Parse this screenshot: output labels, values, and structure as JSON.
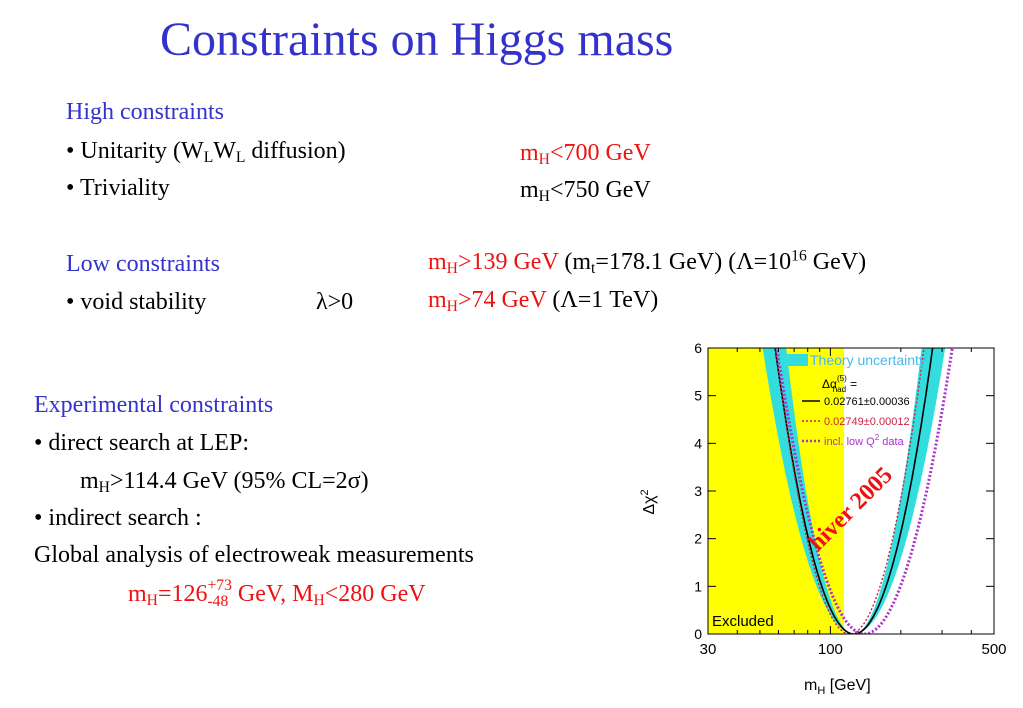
{
  "title": "Constraints on Higgs mass",
  "high": {
    "heading": "High constraints",
    "unitarity_prefix": "• Unitarity (W",
    "unitarity_sub1": "L",
    "unitarity_mid": "W",
    "unitarity_sub2": "L",
    "unitarity_suffix": " diffusion)",
    "unitarity_value_m": "m",
    "unitarity_value_sub": "H",
    "unitarity_value_rest": "<700 GeV",
    "triviality": "• Triviality",
    "triviality_value_m": "m",
    "triviality_value_sub": "H",
    "triviality_value_rest": "<750 GeV"
  },
  "low": {
    "heading": "Low constraints",
    "stability": "• void stability",
    "lambda": "λ>0",
    "line1_m": "m",
    "line1_sub": "H",
    "line1_red": ">139 GeV",
    "line1_p1": " (m",
    "line1_sub_t": "t",
    "line1_p2": "=178.1 GeV) (Λ=10",
    "line1_sup": "16",
    "line1_p3": " GeV)",
    "line2_m": "m",
    "line2_sub": "H",
    "line2_red": ">74 GeV",
    "line2_rest": " (Λ=1 TeV)"
  },
  "experimental": {
    "heading": "Experimental constraints",
    "direct": "• direct search at LEP:",
    "direct_m": "m",
    "direct_sub": "H",
    "direct_rest": ">114.4 GeV (95% CL=2σ)",
    "indirect": "• indirect search :",
    "global": "Global analysis of electroweak measurements",
    "result_m": "m",
    "result_sub": "H",
    "result_val": "=126",
    "result_sup": "+73",
    "result_subval": "-48",
    "result_mid": " GeV, M",
    "result_sub2": "H",
    "result_end": "<280 GeV"
  },
  "chart_data": {
    "type": "line",
    "xlabel_m": "m",
    "xlabel_sub": "H",
    "xlabel_rest": " [GeV]",
    "ylabel_delta": "Δχ",
    "ylabel_sup": "2",
    "xscale": "log",
    "xlim": [
      30,
      500
    ],
    "ylim": [
      0,
      6
    ],
    "xticks": [
      "30",
      "100",
      "500"
    ],
    "yticks": [
      "0",
      "1",
      "2",
      "3",
      "4",
      "5",
      "6"
    ],
    "excluded_region": {
      "x": [
        30,
        114.4
      ],
      "label": "Excluded",
      "color": "#ffff00"
    },
    "band_color": "#33dddd",
    "annotation": "hiver 2005",
    "legend": {
      "band_label": "Theory uncertainty",
      "alpha_label": "Δα",
      "alpha_sup": "(5)",
      "alpha_sub": "had",
      "alpha_eq": "=",
      "entries": [
        {
          "label": "0.02761±0.00036",
          "style": "solid",
          "color": "#000000"
        },
        {
          "label": "0.02749±0.00012",
          "style": "dotted",
          "color": "#cc2244"
        },
        {
          "label": "incl. low Q",
          "sup": "2",
          "tail": " data",
          "style": "dotted",
          "color": "#aa33cc"
        }
      ]
    },
    "series": [
      {
        "style": "solid",
        "min_x": 126,
        "width": 0.7
      },
      {
        "style": "dotted-red",
        "min_x": 121,
        "width": 0.66
      },
      {
        "style": "dotted-purple",
        "min_x": 140,
        "width": 0.78
      }
    ]
  }
}
